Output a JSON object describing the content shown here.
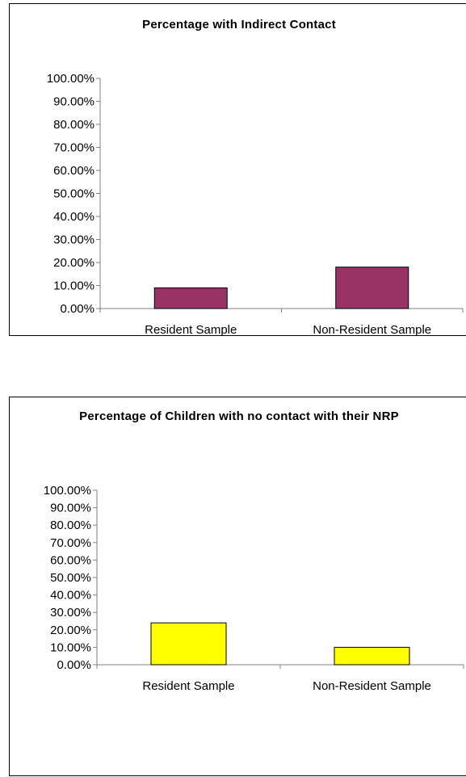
{
  "charts": [
    {
      "title": "Percentage with Indirect Contact"
    },
    {
      "title": "Percentage of Children with no contact with their NRP"
    }
  ],
  "chart_data": [
    {
      "type": "bar",
      "title": "Percentage with Indirect Contact",
      "categories": [
        "Resident Sample",
        "Non-Resident Sample"
      ],
      "values": [
        9,
        18
      ],
      "ylim": [
        0,
        100
      ],
      "yticks": [
        "0.00%",
        "10.00%",
        "20.00%",
        "30.00%",
        "40.00%",
        "50.00%",
        "60.00%",
        "70.00%",
        "80.00%",
        "90.00%",
        "100.00%"
      ],
      "grid": false,
      "legend": "none",
      "bar_color": "#993366"
    },
    {
      "type": "bar",
      "title": "Percentage of Children with no contact with their NRP",
      "categories": [
        "Resident Sample",
        "Non-Resident Sample"
      ],
      "values": [
        24,
        10
      ],
      "ylim": [
        0,
        100
      ],
      "yticks": [
        "0.00%",
        "10.00%",
        "20.00%",
        "30.00%",
        "40.00%",
        "50.00%",
        "60.00%",
        "70.00%",
        "80.00%",
        "90.00%",
        "100.00%"
      ],
      "grid": false,
      "legend": "none",
      "bar_color": "#ffff00"
    }
  ]
}
